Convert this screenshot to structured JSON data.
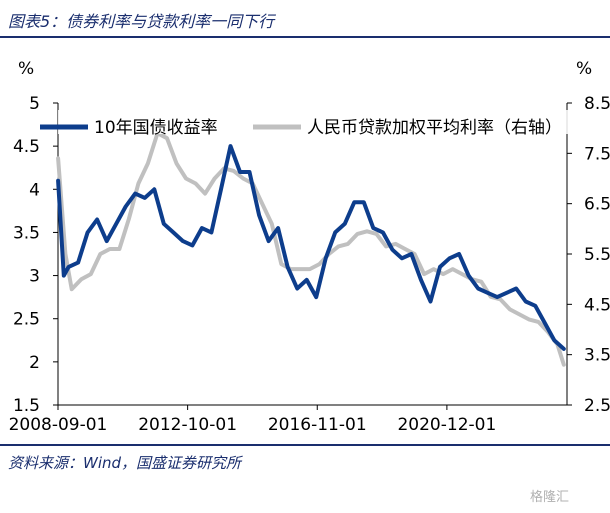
{
  "header": {
    "title": "图表5：债券利率与贷款利率一同下行"
  },
  "footer": {
    "source": "资料来源：Wind，国盛证券研究所"
  },
  "watermark": {
    "text": "格隆汇"
  },
  "chart_data": {
    "type": "line",
    "title": "",
    "left_unit": "%",
    "right_unit": "%",
    "ylim_left": [
      1.5,
      5
    ],
    "ylim_right": [
      2.5,
      8.5
    ],
    "yticks_left": [
      "5",
      "4.5",
      "4",
      "3.5",
      "3",
      "2.5",
      "2",
      "1.5"
    ],
    "yticks_right": [
      "8.5",
      "7.5",
      "6.5",
      "5.5",
      "4.5",
      "3.5",
      "2.5"
    ],
    "xticks": [
      "2008-09-01",
      "2012-10-01",
      "2016-11-01",
      "2020-12-01"
    ],
    "x_range": [
      2008.667,
      2024.7
    ],
    "series": [
      {
        "name": "10年国债收益率",
        "axis": "left",
        "color": "#0d3d8c",
        "x": [
          2008.67,
          2008.85,
          2009.0,
          2009.3,
          2009.6,
          2009.9,
          2010.2,
          2010.5,
          2010.8,
          2011.1,
          2011.4,
          2011.7,
          2012.0,
          2012.3,
          2012.6,
          2012.9,
          2013.2,
          2013.5,
          2013.8,
          2014.1,
          2014.4,
          2014.7,
          2015.0,
          2015.3,
          2015.6,
          2015.9,
          2016.2,
          2016.5,
          2016.8,
          2017.1,
          2017.4,
          2017.7,
          2018.0,
          2018.3,
          2018.6,
          2018.9,
          2019.2,
          2019.5,
          2019.8,
          2020.1,
          2020.4,
          2020.7,
          2021.0,
          2021.3,
          2021.6,
          2021.9,
          2022.2,
          2022.5,
          2022.8,
          2023.1,
          2023.4,
          2023.7,
          2024.0,
          2024.3,
          2024.6
        ],
        "values": [
          4.1,
          3.0,
          3.1,
          3.15,
          3.5,
          3.65,
          3.4,
          3.6,
          3.8,
          3.95,
          3.9,
          4.0,
          3.6,
          3.5,
          3.4,
          3.35,
          3.55,
          3.5,
          4.0,
          4.5,
          4.2,
          4.2,
          3.7,
          3.4,
          3.55,
          3.1,
          2.85,
          2.95,
          2.75,
          3.2,
          3.5,
          3.6,
          3.85,
          3.85,
          3.55,
          3.5,
          3.3,
          3.2,
          3.25,
          2.95,
          2.7,
          3.1,
          3.2,
          3.25,
          3.0,
          2.85,
          2.8,
          2.75,
          2.8,
          2.85,
          2.7,
          2.65,
          2.45,
          2.25,
          2.15
        ]
      },
      {
        "name": "人民币贷款加权平均利率（右轴）",
        "axis": "right",
        "color": "#c0c0c0",
        "x": [
          2008.67,
          2008.9,
          2009.1,
          2009.4,
          2009.7,
          2010.0,
          2010.3,
          2010.6,
          2010.9,
          2011.2,
          2011.5,
          2011.8,
          2012.1,
          2012.4,
          2012.7,
          2013.0,
          2013.3,
          2013.6,
          2013.9,
          2014.2,
          2014.5,
          2014.8,
          2015.1,
          2015.4,
          2015.7,
          2016.0,
          2016.3,
          2016.6,
          2016.9,
          2017.2,
          2017.5,
          2017.8,
          2018.1,
          2018.4,
          2018.7,
          2019.0,
          2019.3,
          2019.6,
          2019.9,
          2020.2,
          2020.5,
          2020.8,
          2021.1,
          2021.4,
          2021.7,
          2022.0,
          2022.3,
          2022.6,
          2022.9,
          2023.2,
          2023.5,
          2023.8,
          2024.1,
          2024.4,
          2024.6
        ],
        "values": [
          7.4,
          5.5,
          4.8,
          5.0,
          5.1,
          5.5,
          5.6,
          5.6,
          6.2,
          6.9,
          7.3,
          7.9,
          7.8,
          7.3,
          7.0,
          6.9,
          6.7,
          7.0,
          7.2,
          7.15,
          7.0,
          6.9,
          6.5,
          6.1,
          5.3,
          5.2,
          5.2,
          5.2,
          5.3,
          5.5,
          5.65,
          5.7,
          5.9,
          5.95,
          5.9,
          5.65,
          5.7,
          5.6,
          5.5,
          5.1,
          5.2,
          5.1,
          5.2,
          5.1,
          5.0,
          4.95,
          4.65,
          4.6,
          4.4,
          4.3,
          4.2,
          4.15,
          3.95,
          3.7,
          3.3
        ]
      }
    ]
  }
}
